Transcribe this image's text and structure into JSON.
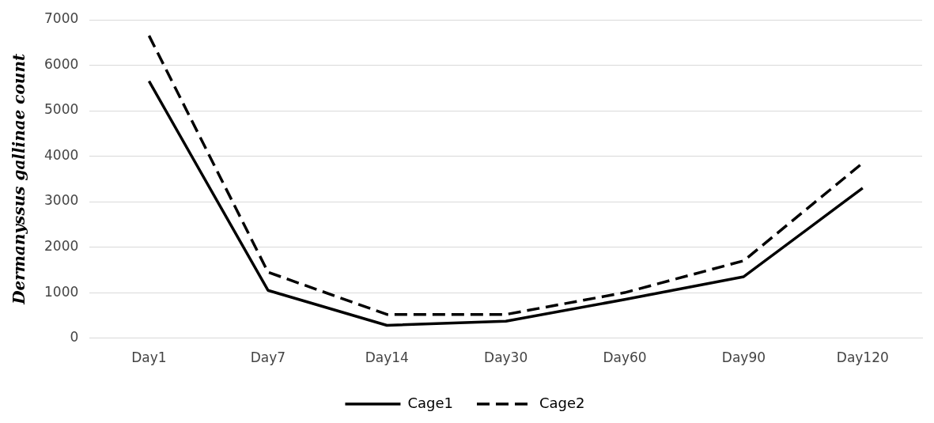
{
  "chart_data": {
    "type": "line",
    "ylabel": "Dermanyssus gallinae count",
    "categories": [
      "Day1",
      "Day7",
      "Day14",
      "Day30",
      "Day60",
      "Day90",
      "Day120"
    ],
    "series": [
      {
        "name": "Cage1",
        "color": "#000000",
        "line_style": "solid",
        "values": [
          5650,
          1050,
          280,
          370,
          850,
          1350,
          3300
        ]
      },
      {
        "name": "Cage2",
        "color": "#000000",
        "line_style": "dashed",
        "values": [
          6650,
          1450,
          520,
          520,
          1000,
          1700,
          3850
        ]
      }
    ],
    "ylim": [
      0,
      7000
    ],
    "yticks": [
      0,
      1000,
      2000,
      3000,
      4000,
      5000,
      6000,
      7000
    ],
    "grid": "y",
    "legend": "bottom",
    "marker": "none"
  }
}
